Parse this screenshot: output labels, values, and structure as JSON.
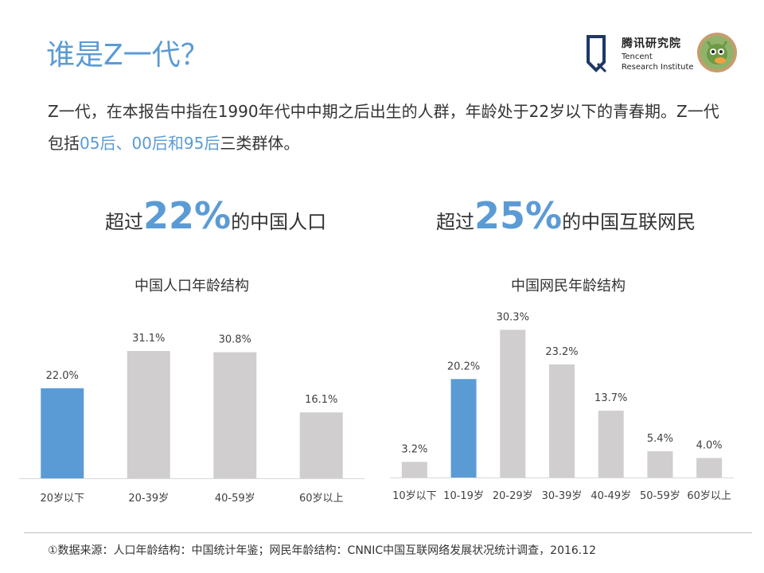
{
  "page": {
    "title": "谁是Z一代？",
    "intro": {
      "text_before": "Z一代，在本报告中指在1990年代中中期之后出生的人群，年龄处于22岁以下的青春期。Z一代包括",
      "highlight": "05后、00后和95后",
      "text_after": "三类群体。"
    },
    "logo": {
      "name_cn": "腾讯研究院",
      "name_en_line1": "Tencent",
      "name_en_line2": "Research Institute",
      "icon": "tencent-research-logo-icon",
      "mascot_icon": "mascot-badge-icon"
    },
    "stats": [
      {
        "prefix": "超过",
        "value": "22%",
        "suffix": "的中国人口"
      },
      {
        "prefix": "超过",
        "value": "25%",
        "suffix": "的中国互联网民"
      }
    ],
    "footnote": "①数据来源：人口年龄结构：中国统计年鉴；网民年龄结构：CNNIC中国互联网络发展状况统计调查，2016.12"
  },
  "colors": {
    "accent": "#5b9bd5",
    "bar_default": "#d0cece",
    "text": "#333333",
    "axis": "#d9d9d9"
  },
  "chart_data": [
    {
      "type": "bar",
      "title": "中国人口年龄结构",
      "categories": [
        "20岁以下",
        "20-39岁",
        "40-59岁",
        "60岁以上"
      ],
      "values": [
        22.0,
        31.1,
        30.8,
        16.1
      ],
      "labels": [
        "22.0%",
        "31.1%",
        "30.8%",
        "16.1%"
      ],
      "highlight_index": 0,
      "unit": "%",
      "ylim": [
        0,
        35
      ],
      "grid": false,
      "legend": "none"
    },
    {
      "type": "bar",
      "title": "中国网民年龄结构",
      "categories": [
        "10岁以下",
        "10-19岁",
        "20-29岁",
        "30-39岁",
        "40-49岁",
        "50-59岁",
        "60岁以上"
      ],
      "values": [
        3.2,
        20.2,
        30.3,
        23.2,
        13.7,
        5.4,
        4.0
      ],
      "labels": [
        "3.2%",
        "20.2%",
        "30.3%",
        "23.2%",
        "13.7%",
        "5.4%",
        "4.0%"
      ],
      "highlight_index": 1,
      "unit": "%",
      "ylim": [
        0,
        32
      ],
      "grid": false,
      "legend": "none"
    }
  ]
}
